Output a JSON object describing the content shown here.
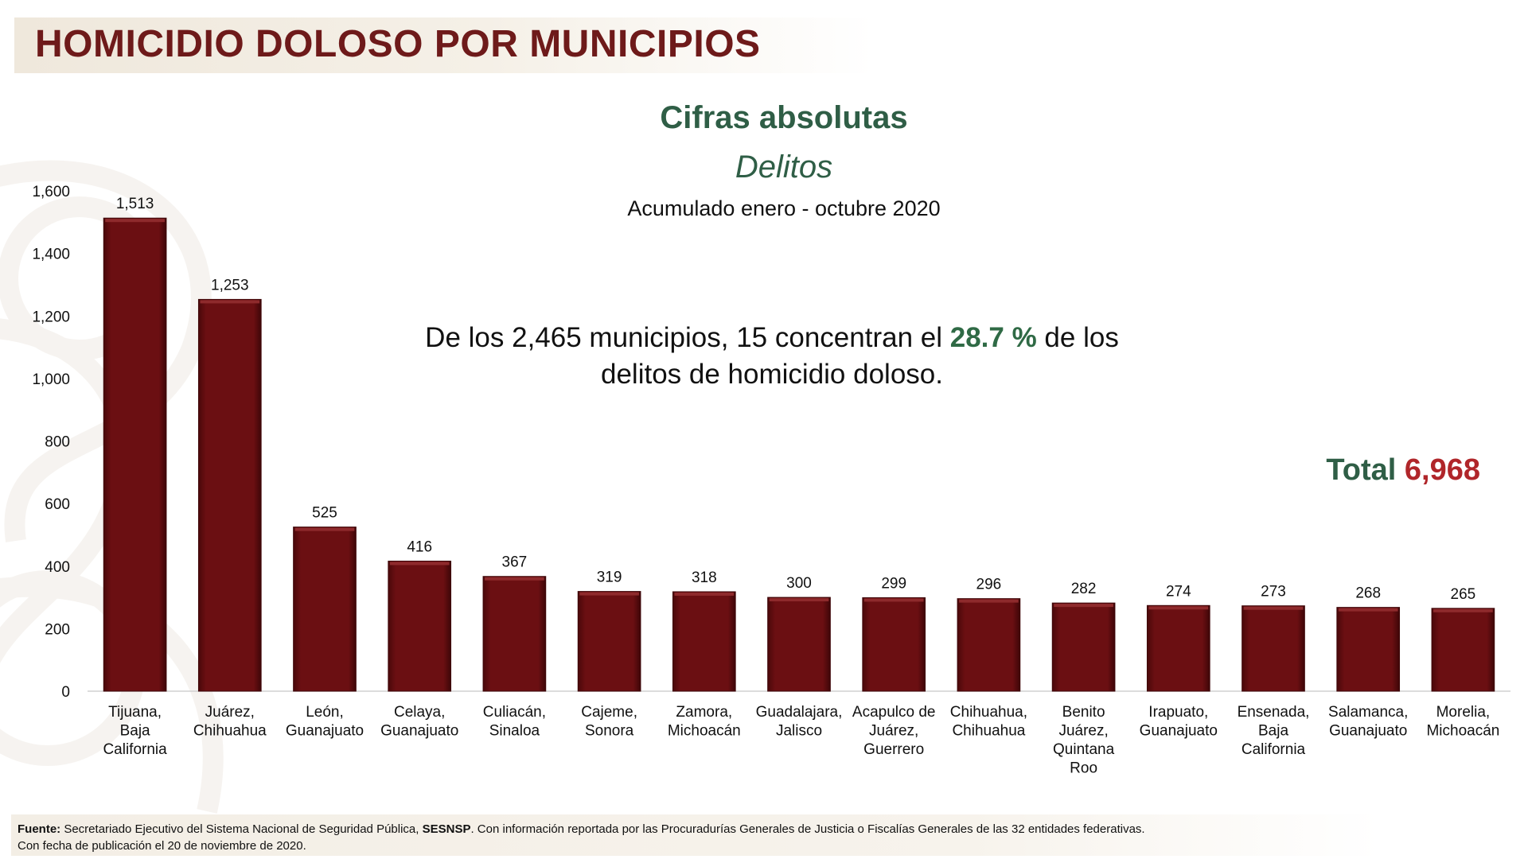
{
  "header": {
    "title": "HOMICIDIO DOLOSO POR MUNICIPIOS",
    "subtitle": "Cifras absolutas",
    "subtitle2": "Delitos",
    "period": "Acumulado enero - octubre 2020"
  },
  "annotation": {
    "line1_pre": "De los 2,465 municipios, 15 concentran el ",
    "highlight": "28.7 %",
    "line1_post": " de los",
    "line2": "delitos de homicidio doloso."
  },
  "total": {
    "label": "Total",
    "value": "6,968"
  },
  "footer": {
    "fuente_label": "Fuente:",
    "text_a": " Secretariado Ejecutivo del Sistema Nacional de Seguridad Pública, ",
    "sesnsp": "SESNSP",
    "text_b": ". Con información reportada por las Procuradurías Generales de Justicia o Fiscalías Generales de las 32 entidades federativas.",
    "line2": "Con fecha de publicación el 20 de noviembre de 2020."
  },
  "colors": {
    "bar": "#6b0f12",
    "bar_highlight": "#8e2a2c",
    "bar_shadow": "#3e0608",
    "title": "#6e1a1a",
    "green": "#2f5e46",
    "total_value": "#b0262a"
  },
  "chart_data": {
    "type": "bar",
    "title": "Cifras absolutas",
    "ylim": [
      0,
      1600
    ],
    "yticks": [
      0,
      200,
      400,
      600,
      800,
      1000,
      1200,
      1400,
      1600
    ],
    "ytick_labels": [
      "0",
      "200",
      "400",
      "600",
      "800",
      "1,000",
      "1,200",
      "1,400",
      "1,600"
    ],
    "categories": [
      [
        "Tijuana,",
        "Baja",
        "California"
      ],
      [
        "Juárez,",
        "Chihuahua"
      ],
      [
        "León,",
        "Guanajuato"
      ],
      [
        "Celaya,",
        "Guanajuato"
      ],
      [
        "Culiacán,",
        "Sinaloa"
      ],
      [
        "Cajeme,",
        "Sonora"
      ],
      [
        "Zamora,",
        "Michoacán"
      ],
      [
        "Guadalajara,",
        "Jalisco"
      ],
      [
        "Acapulco de",
        "Juárez,",
        "Guerrero"
      ],
      [
        "Chihuahua,",
        "Chihuahua"
      ],
      [
        "Benito",
        "Juárez,",
        "Quintana",
        "Roo"
      ],
      [
        "Irapuato,",
        "Guanajuato"
      ],
      [
        "Ensenada,",
        "Baja",
        "California"
      ],
      [
        "Salamanca,",
        "Guanajuato"
      ],
      [
        "Morelia,",
        "Michoacán"
      ]
    ],
    "values": [
      1513,
      1253,
      525,
      416,
      367,
      319,
      318,
      300,
      299,
      296,
      282,
      274,
      273,
      268,
      265
    ],
    "value_labels": [
      "1,513",
      "1,253",
      "525",
      "416",
      "367",
      "319",
      "318",
      "300",
      "299",
      "296",
      "282",
      "274",
      "273",
      "268",
      "265"
    ],
    "xlabel": "",
    "ylabel": ""
  }
}
